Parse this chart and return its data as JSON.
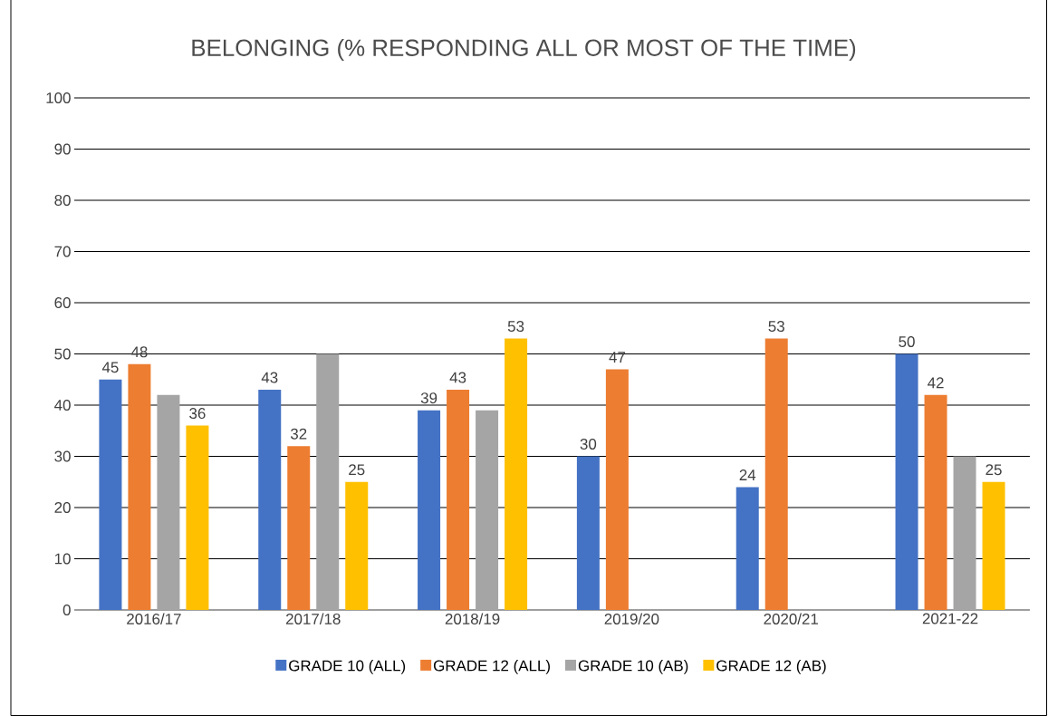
{
  "chart_data": {
    "type": "bar",
    "title": "BELONGING  (% RESPONDING ALL OR MOST OF THE TIME)",
    "categories": [
      "2016/17",
      "2017/18",
      "2018/19",
      "2019/20",
      "2020/21",
      "2021-22"
    ],
    "series": [
      {
        "name": "GRADE 10 (ALL)",
        "color": "#4472c4",
        "values": [
          45,
          43,
          39,
          30,
          24,
          50
        ],
        "value_labels": [
          "45",
          "43",
          "39",
          "30",
          "24",
          "50"
        ]
      },
      {
        "name": "GRADE 12 (ALL)",
        "color": "#ed7d31",
        "values": [
          48,
          32,
          43,
          47,
          53,
          42
        ],
        "value_labels": [
          "48",
          "32",
          "43",
          "47",
          "53",
          "42"
        ]
      },
      {
        "name": "GRADE 10 (AB)",
        "color": "#a5a5a5",
        "values": [
          42,
          50,
          39,
          null,
          null,
          30
        ]
      },
      {
        "name": "GRADE 12 (AB)",
        "color": "#ffc000",
        "values": [
          36,
          25,
          53,
          null,
          null,
          25
        ],
        "value_labels": [
          "36",
          "25",
          "53",
          null,
          null,
          "25"
        ]
      }
    ],
    "ylim": [
      0,
      100
    ],
    "yticks": [
      0,
      10,
      20,
      30,
      40,
      50,
      60,
      70,
      80,
      90,
      100
    ],
    "grid": "y",
    "legend": "bottom"
  }
}
